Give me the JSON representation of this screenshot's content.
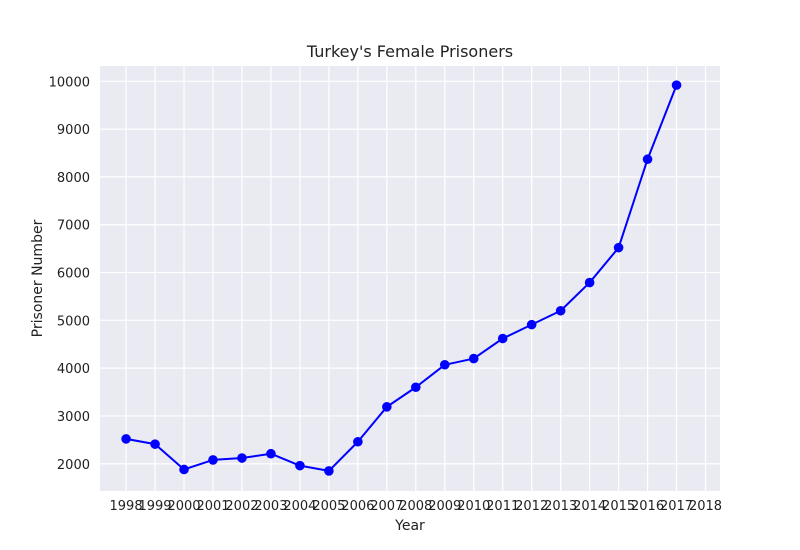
{
  "chart_data": {
    "type": "line",
    "title": "Turkey's Female Prisoners",
    "xlabel": "Year",
    "ylabel": "Prisoner Number",
    "x": [
      1998,
      1999,
      2000,
      2001,
      2002,
      2003,
      2004,
      2005,
      2006,
      2007,
      2008,
      2009,
      2010,
      2011,
      2012,
      2013,
      2014,
      2015,
      2016,
      2017
    ],
    "x_ticks": [
      "1998",
      "1999",
      "2000",
      "2001",
      "2002",
      "2003",
      "2004",
      "2005",
      "2006",
      "2007",
      "2008",
      "2009",
      "2010",
      "2011",
      "2012",
      "2013",
      "2014",
      "2015",
      "2016",
      "2017",
      "2018"
    ],
    "y_ticks": [
      "2000",
      "3000",
      "4000",
      "5000",
      "6000",
      "7000",
      "8000",
      "9000",
      "10000"
    ],
    "series": [
      {
        "values": [
          2520,
          2410,
          1880,
          2080,
          2120,
          2210,
          1960,
          1850,
          2460,
          3190,
          3600,
          4070,
          4200,
          4620,
          4910,
          5200,
          5790,
          6520,
          8370,
          9920
        ],
        "color": "#0000ff",
        "marker": "circle"
      }
    ],
    "xlim": [
      1997.1,
      2018.5
    ],
    "ylim": [
      1430,
      10320
    ],
    "grid": true,
    "background": "#eaeaf2",
    "grid_color": "#ffffff"
  }
}
